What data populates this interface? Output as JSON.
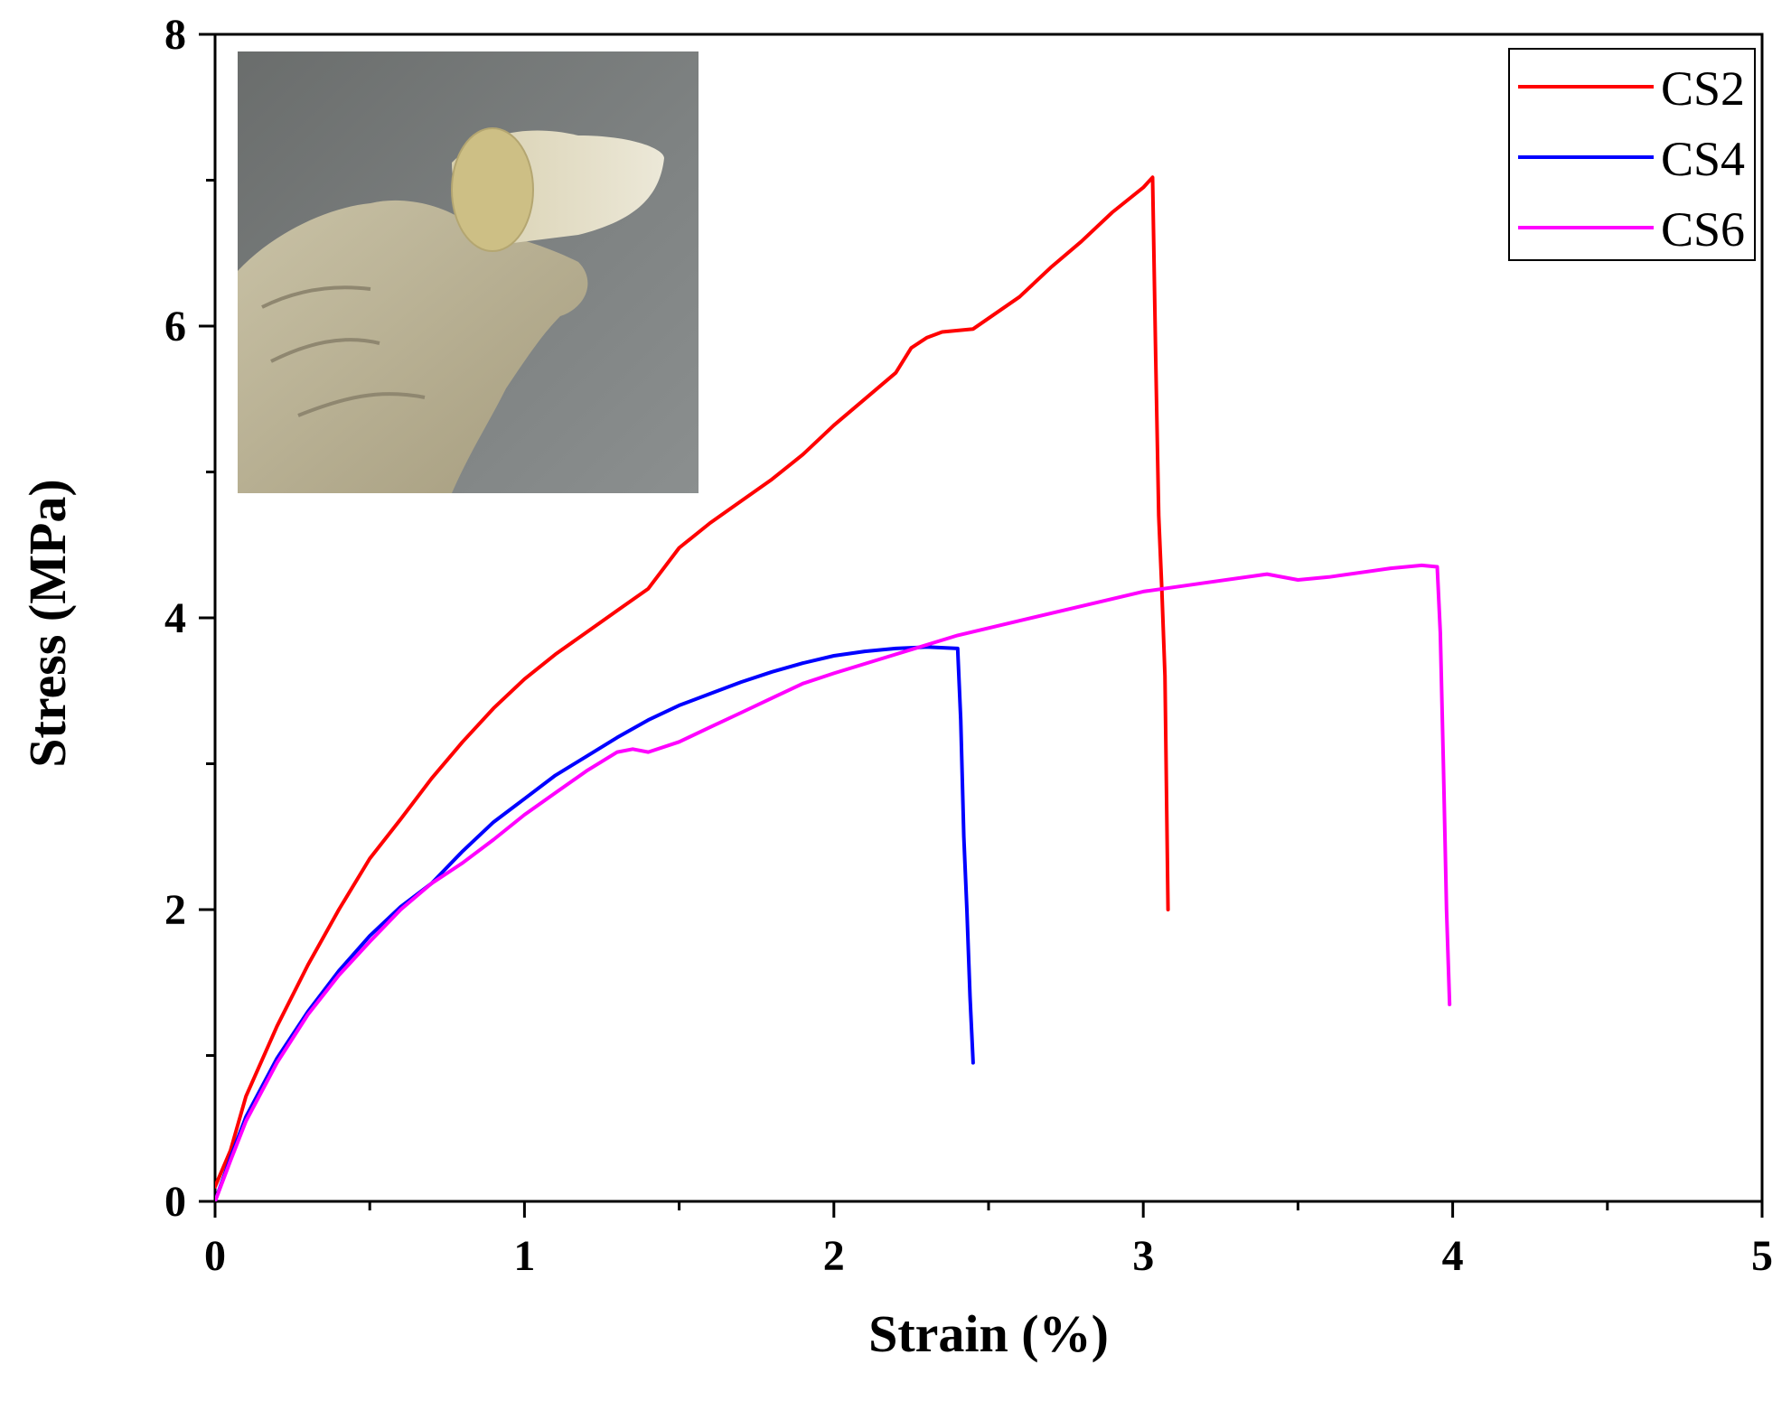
{
  "chart_data": {
    "type": "line",
    "title": "",
    "xlabel": "Strain (%)",
    "ylabel": "Stress (MPa)",
    "xlim": [
      0,
      5
    ],
    "ylim": [
      0,
      8
    ],
    "xticks": [
      0,
      1,
      2,
      3,
      4,
      5
    ],
    "yticks": [
      0,
      2,
      4,
      6,
      8
    ],
    "grid": false,
    "legend_position": "top-right",
    "inset": {
      "description": "gloved hand holding a curved film sample",
      "position": "top-left"
    },
    "series": [
      {
        "name": "CS2",
        "color": "#ff0000",
        "points": [
          [
            0,
            0.1
          ],
          [
            0.05,
            0.35
          ],
          [
            0.1,
            0.72
          ],
          [
            0.2,
            1.2
          ],
          [
            0.3,
            1.62
          ],
          [
            0.4,
            2.0
          ],
          [
            0.5,
            2.35
          ],
          [
            0.6,
            2.62
          ],
          [
            0.7,
            2.9
          ],
          [
            0.8,
            3.15
          ],
          [
            0.9,
            3.38
          ],
          [
            1.0,
            3.58
          ],
          [
            1.1,
            3.75
          ],
          [
            1.2,
            3.9
          ],
          [
            1.3,
            4.05
          ],
          [
            1.4,
            4.2
          ],
          [
            1.5,
            4.48
          ],
          [
            1.6,
            4.65
          ],
          [
            1.7,
            4.8
          ],
          [
            1.8,
            4.95
          ],
          [
            1.9,
            5.12
          ],
          [
            2.0,
            5.32
          ],
          [
            2.1,
            5.5
          ],
          [
            2.2,
            5.68
          ],
          [
            2.25,
            5.85
          ],
          [
            2.3,
            5.92
          ],
          [
            2.35,
            5.96
          ],
          [
            2.45,
            5.98
          ],
          [
            2.6,
            6.2
          ],
          [
            2.7,
            6.4
          ],
          [
            2.8,
            6.58
          ],
          [
            2.9,
            6.78
          ],
          [
            3.0,
            6.95
          ],
          [
            3.03,
            7.02
          ],
          [
            3.04,
            5.8
          ],
          [
            3.05,
            4.7
          ],
          [
            3.06,
            4.2
          ],
          [
            3.07,
            3.6
          ],
          [
            3.08,
            2.0
          ]
        ]
      },
      {
        "name": "CS4",
        "color": "#0000ff",
        "points": [
          [
            0,
            0.0
          ],
          [
            0.05,
            0.3
          ],
          [
            0.1,
            0.58
          ],
          [
            0.2,
            0.98
          ],
          [
            0.3,
            1.3
          ],
          [
            0.4,
            1.58
          ],
          [
            0.5,
            1.82
          ],
          [
            0.6,
            2.02
          ],
          [
            0.7,
            2.18
          ],
          [
            0.8,
            2.4
          ],
          [
            0.9,
            2.6
          ],
          [
            1.0,
            2.76
          ],
          [
            1.1,
            2.92
          ],
          [
            1.2,
            3.05
          ],
          [
            1.3,
            3.18
          ],
          [
            1.4,
            3.3
          ],
          [
            1.5,
            3.4
          ],
          [
            1.6,
            3.48
          ],
          [
            1.7,
            3.56
          ],
          [
            1.8,
            3.63
          ],
          [
            1.9,
            3.69
          ],
          [
            2.0,
            3.74
          ],
          [
            2.1,
            3.77
          ],
          [
            2.2,
            3.79
          ],
          [
            2.3,
            3.8
          ],
          [
            2.4,
            3.79
          ],
          [
            2.41,
            3.3
          ],
          [
            2.42,
            2.5
          ],
          [
            2.43,
            2.0
          ],
          [
            2.44,
            1.4
          ],
          [
            2.45,
            0.95
          ]
        ]
      },
      {
        "name": "CS6",
        "color": "#ff00ff",
        "points": [
          [
            0,
            0.0
          ],
          [
            0.05,
            0.28
          ],
          [
            0.1,
            0.55
          ],
          [
            0.2,
            0.95
          ],
          [
            0.3,
            1.28
          ],
          [
            0.4,
            1.55
          ],
          [
            0.5,
            1.78
          ],
          [
            0.6,
            2.0
          ],
          [
            0.7,
            2.18
          ],
          [
            0.8,
            2.32
          ],
          [
            0.9,
            2.48
          ],
          [
            1.0,
            2.65
          ],
          [
            1.1,
            2.8
          ],
          [
            1.2,
            2.95
          ],
          [
            1.3,
            3.08
          ],
          [
            1.35,
            3.1
          ],
          [
            1.4,
            3.08
          ],
          [
            1.5,
            3.15
          ],
          [
            1.6,
            3.25
          ],
          [
            1.7,
            3.35
          ],
          [
            1.8,
            3.45
          ],
          [
            1.9,
            3.55
          ],
          [
            2.0,
            3.62
          ],
          [
            2.2,
            3.75
          ],
          [
            2.4,
            3.88
          ],
          [
            2.6,
            3.98
          ],
          [
            2.8,
            4.08
          ],
          [
            3.0,
            4.18
          ],
          [
            3.2,
            4.24
          ],
          [
            3.4,
            4.3
          ],
          [
            3.5,
            4.26
          ],
          [
            3.6,
            4.28
          ],
          [
            3.8,
            4.34
          ],
          [
            3.9,
            4.36
          ],
          [
            3.95,
            4.35
          ],
          [
            3.96,
            3.9
          ],
          [
            3.97,
            3.0
          ],
          [
            3.98,
            2.0
          ],
          [
            3.99,
            1.35
          ]
        ]
      }
    ]
  }
}
